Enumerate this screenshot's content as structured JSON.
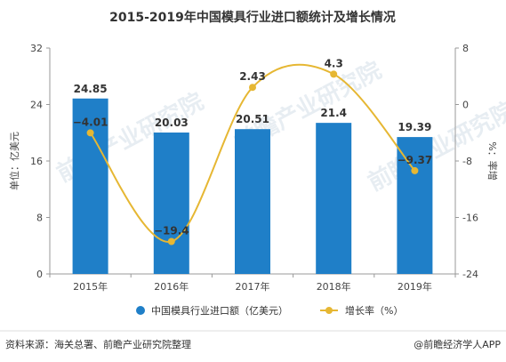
{
  "title": "2015-2019年中国模具行业进口额统计及增长情况",
  "source": "资料来源：海关总署、前瞻产业研究院整理",
  "credit": "@前瞻经济学人APP",
  "watermark": "前瞻产业研究院",
  "colors": {
    "bar": "#1f7fc8",
    "line": "#e6b733",
    "axis": "#999999"
  },
  "chart_data": {
    "type": "bar",
    "categories": [
      "2015年",
      "2016年",
      "2017年",
      "2018年",
      "2019年"
    ],
    "ylabel": "单位：亿美元",
    "y2label": "%：率增",
    "ylim": [
      0,
      32
    ],
    "yticks": [
      0,
      8,
      16,
      24,
      32
    ],
    "y2lim": [
      -24,
      8
    ],
    "y2ticks": [
      -24,
      -16,
      -8,
      0,
      8
    ],
    "grid": false,
    "legend_position": "bottom",
    "series": [
      {
        "name": "中国模具行业进口额（亿美元）",
        "type": "bar",
        "axis": "left",
        "values": [
          24.85,
          20.03,
          20.51,
          21.4,
          19.39
        ]
      },
      {
        "name": "增长率（%）",
        "type": "line",
        "axis": "right",
        "values": [
          -4.01,
          -19.4,
          2.43,
          4.3,
          -9.37
        ]
      }
    ]
  }
}
